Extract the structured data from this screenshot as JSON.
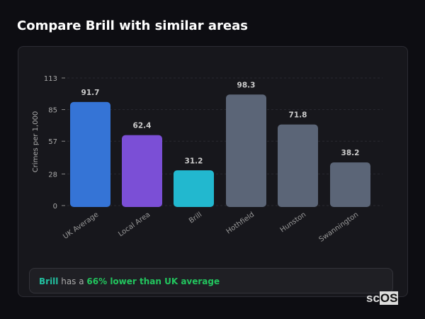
{
  "title": "Compare Brill with similar areas",
  "chart_data": {
    "type": "bar",
    "ylabel": "Crimes per 1,000",
    "yticks": [
      0,
      28,
      57,
      85,
      113
    ],
    "ylim": [
      0,
      113
    ],
    "grid": true,
    "categories": [
      "UK Average",
      "Local Area",
      "Brill",
      "Hothfield",
      "Hunston",
      "Swannington"
    ],
    "values": [
      91.7,
      62.4,
      31.2,
      98.3,
      71.8,
      38.2
    ],
    "colors": [
      "#3574d6",
      "#7b4fd6",
      "#22b8cf",
      "#5b6577",
      "#5b6577",
      "#5b6577"
    ]
  },
  "summary": {
    "area": "Brill",
    "middle": " has a ",
    "comparison": "66% lower than UK average"
  },
  "logo": {
    "prefix": "sc",
    "boxed": "OS"
  }
}
